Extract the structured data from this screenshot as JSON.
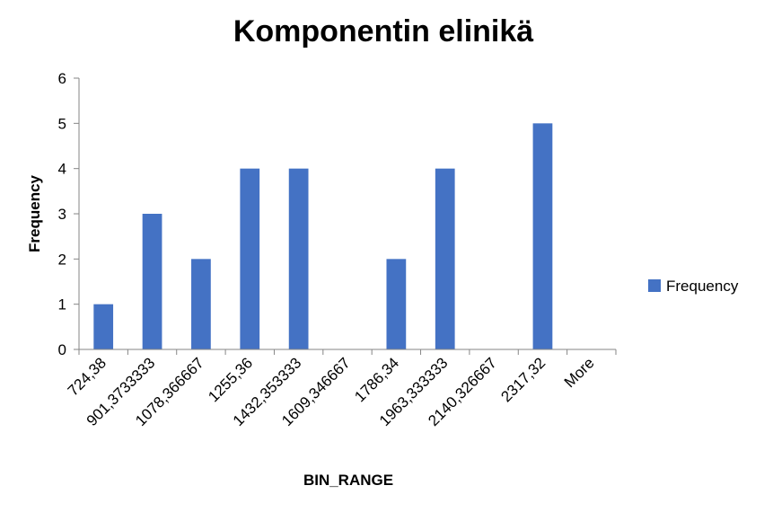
{
  "chart_data": {
    "type": "bar",
    "title": "Komponentin elinikä",
    "xlabel": "BIN_RANGE",
    "ylabel": "Frequency",
    "categories": [
      "724,38",
      "901,3733333",
      "1078,366667",
      "1255,36",
      "1432,353333",
      "1609,346667",
      "1786,34",
      "1963,333333",
      "2140,326667",
      "2317,32",
      "More"
    ],
    "series": [
      {
        "name": "Frequency",
        "color": "#4472C4",
        "values": [
          1,
          3,
          2,
          4,
          4,
          0,
          2,
          4,
          0,
          5,
          0
        ]
      }
    ],
    "ylim": [
      0,
      6
    ],
    "yticks": [
      0,
      1,
      2,
      3,
      4,
      5,
      6
    ],
    "grid": false,
    "legend": "right"
  }
}
